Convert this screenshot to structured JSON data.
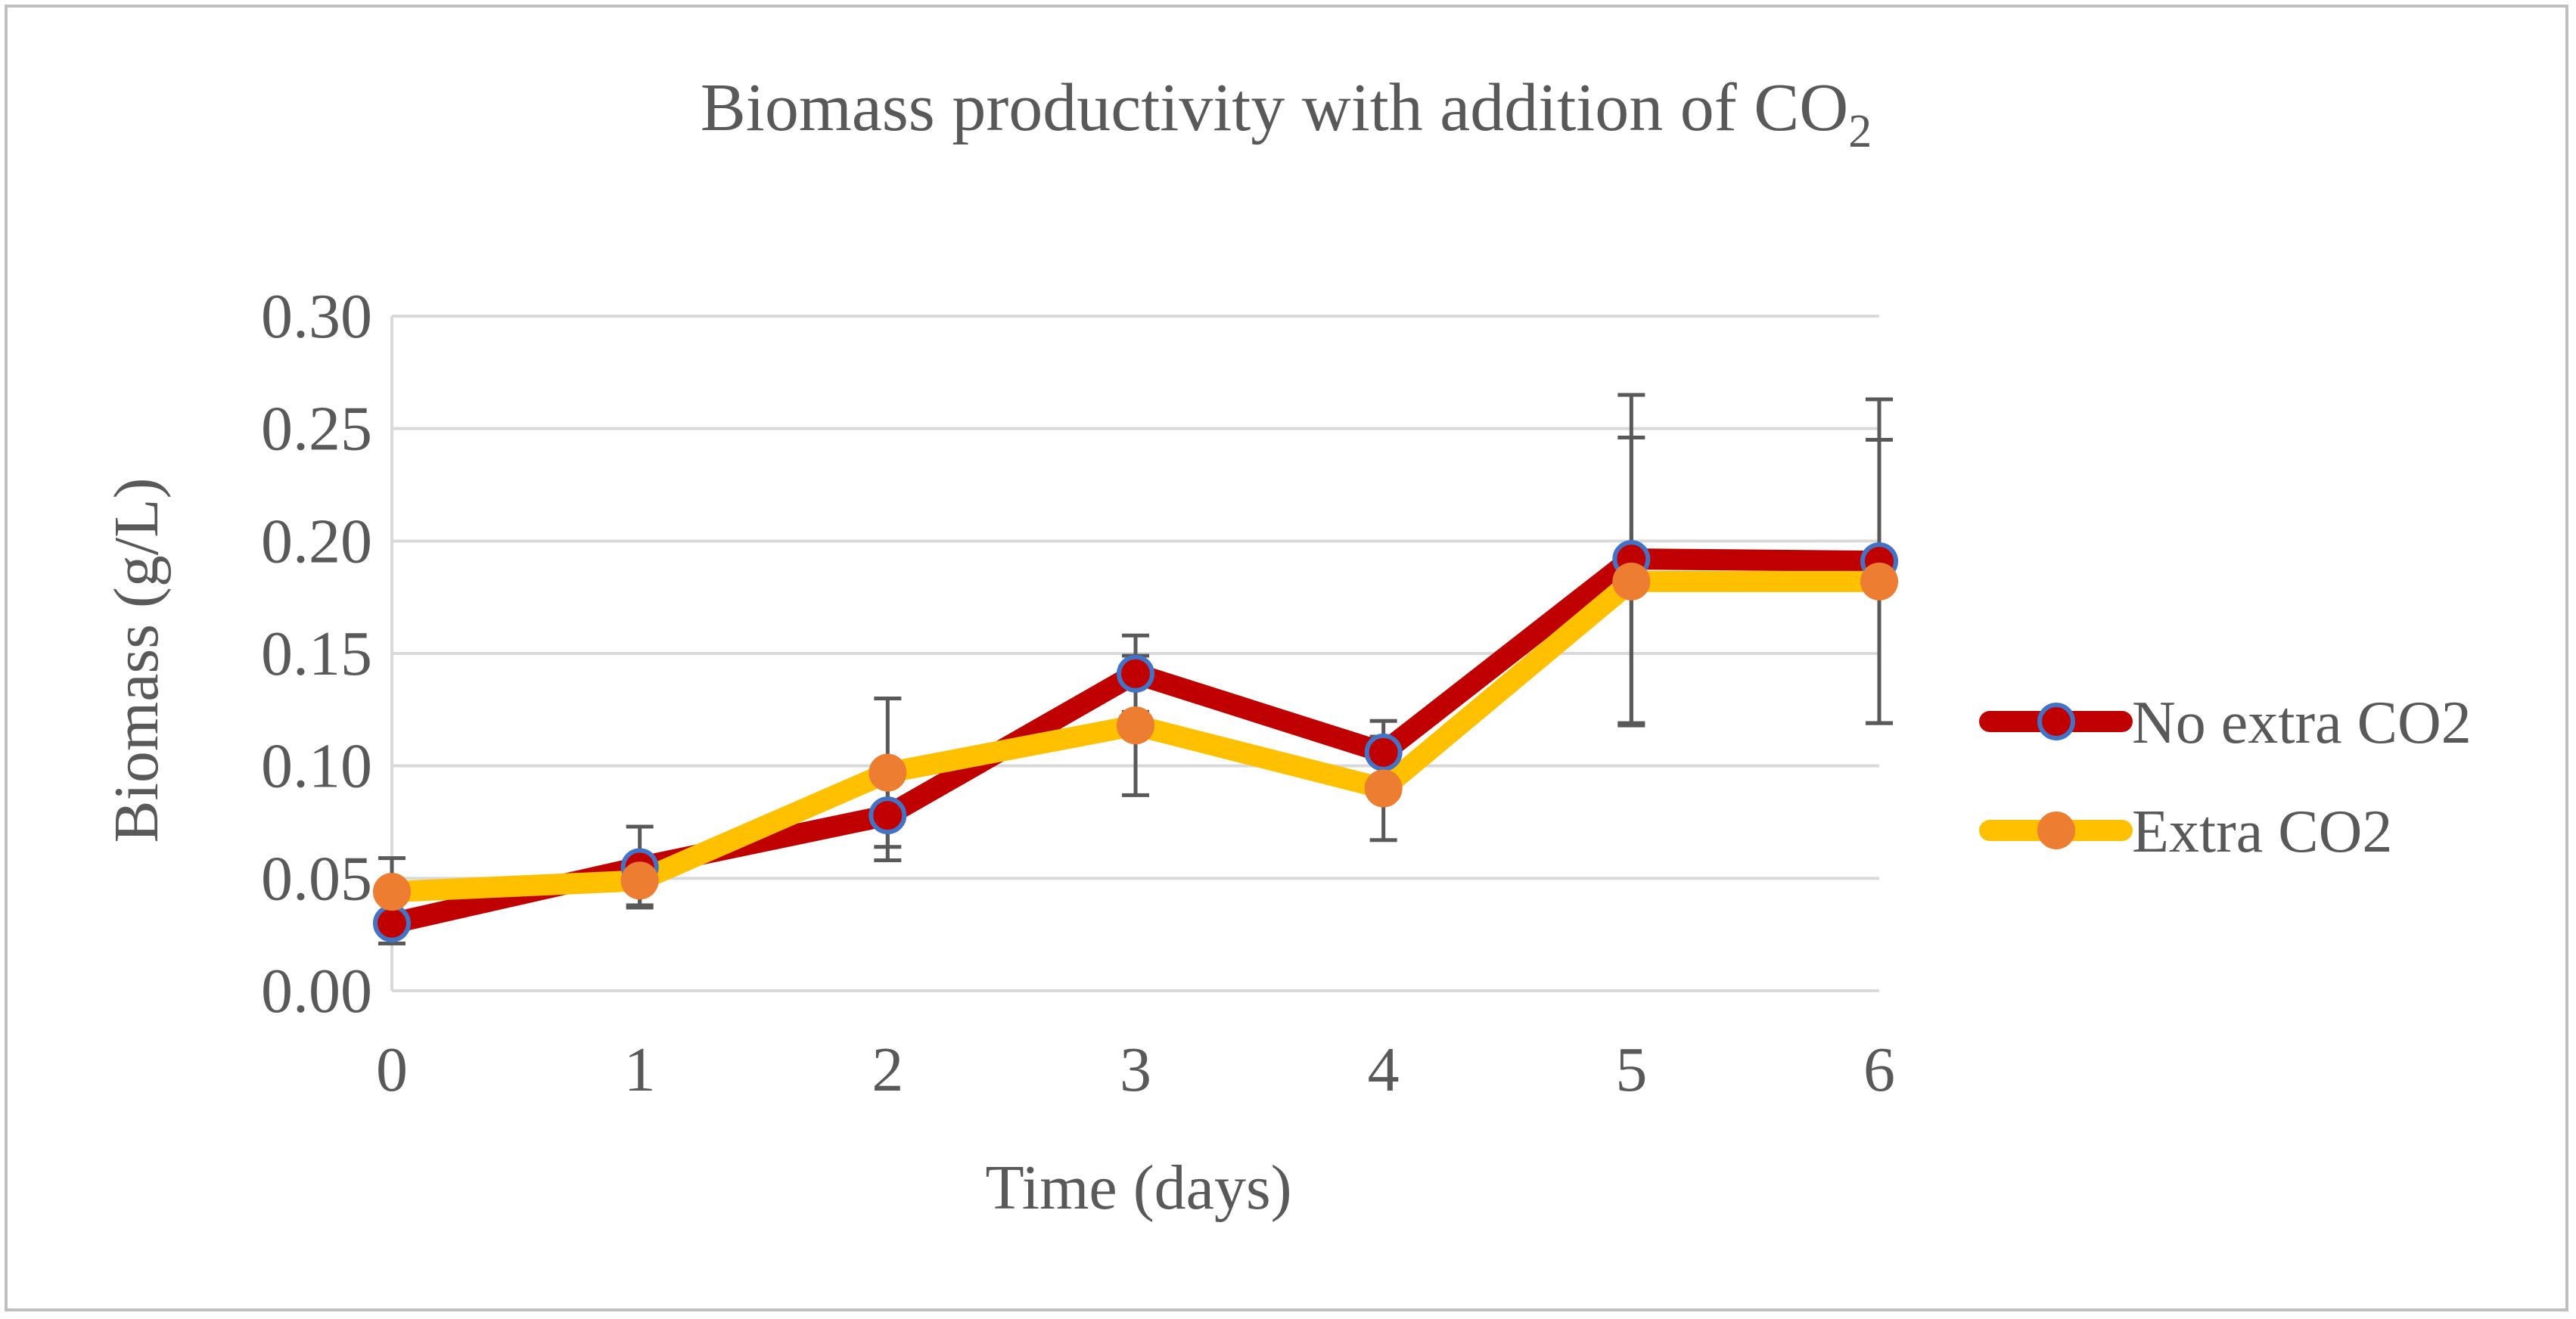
{
  "chart_data": {
    "type": "line",
    "title": "Biomass productivity with addition of CO",
    "title_subscript": "2",
    "xlabel": "Time (days)",
    "ylabel": "Biomass (g/L)",
    "x": [
      0,
      1,
      2,
      3,
      4,
      5,
      6
    ],
    "x_tick_labels": [
      "0",
      "1",
      "2",
      "3",
      "4",
      "5",
      "6"
    ],
    "ylim": [
      0,
      0.3
    ],
    "y_tick_labels": [
      "0.00",
      "0.05",
      "0.10",
      "0.15",
      "0.20",
      "0.25",
      "0.30"
    ],
    "grid": true,
    "legend_position": "right",
    "series": [
      {
        "name": "No extra CO2",
        "values": [
          0.03,
          0.055,
          0.078,
          0.141,
          0.106,
          0.192,
          0.191
        ],
        "error": [
          0.009,
          0.018,
          0.02,
          0.017,
          0.014,
          0.073,
          0.072
        ],
        "line_color": "#c00000",
        "marker_fill": "#c00000",
        "marker_edge": "#4472c4"
      },
      {
        "name": "Extra CO2",
        "values": [
          0.044,
          0.049,
          0.097,
          0.118,
          0.09,
          0.182,
          0.182
        ],
        "error": [
          0.015,
          0.011,
          0.033,
          0.031,
          0.023,
          0.064,
          0.063
        ],
        "line_color": "#ffc000",
        "marker_fill": "#ed7d31",
        "marker_edge": "#ed7d31"
      }
    ],
    "error_bar_color": "#595959",
    "grid_color": "#d9d9d9"
  }
}
